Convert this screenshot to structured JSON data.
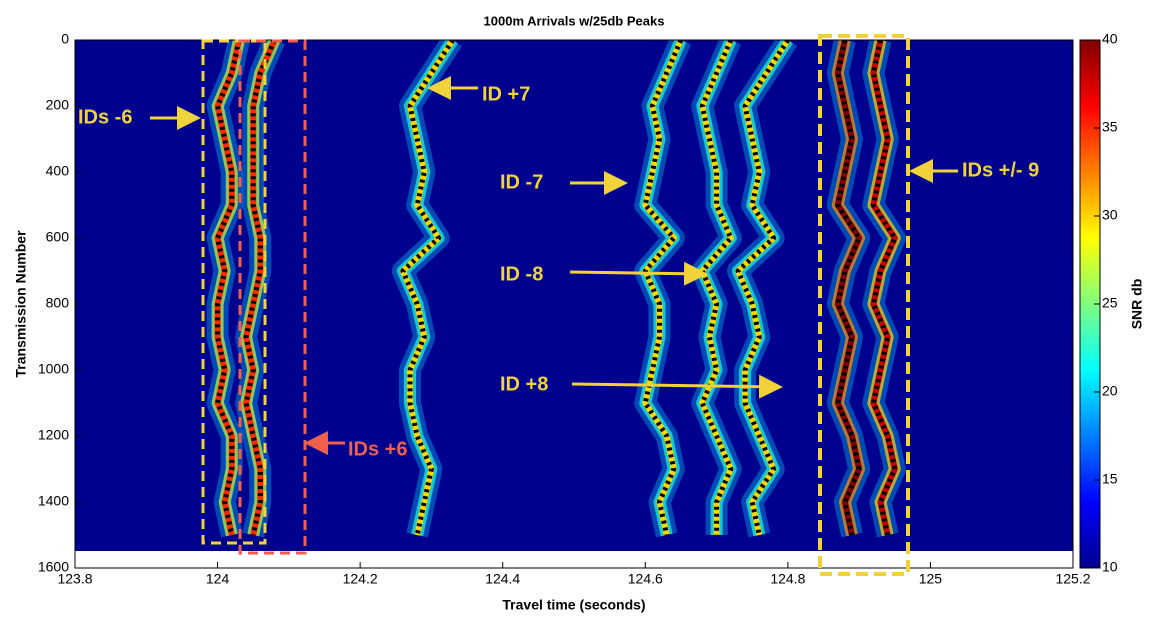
{
  "chart_data": {
    "type": "heatmap",
    "title": "1000m Arrivals w/25db Peaks",
    "x_label": "Travel time (seconds)",
    "y_label": "Transmission Number",
    "xlim": [
      123.8,
      125.2
    ],
    "xticks": [
      123.8,
      124,
      124.2,
      124.4,
      124.6,
      124.8,
      125,
      125.2
    ],
    "ylim": [
      0,
      1600
    ],
    "yticks": [
      0,
      200,
      400,
      600,
      800,
      1000,
      1200,
      1400,
      1600
    ],
    "y_reversed": true,
    "colormap": "jet",
    "colorbar_label": "SNR db",
    "clim": [
      10,
      40
    ],
    "cticks": [
      10,
      15,
      20,
      25,
      30,
      35,
      40
    ],
    "background_value": 10,
    "rows": [
      0,
      100,
      200,
      300,
      400,
      500,
      600,
      700,
      800,
      900,
      1000,
      1100,
      1200,
      1300,
      1400,
      1500
    ],
    "tracks": [
      {
        "x": [
          124.03,
          124.02,
          124.0,
          124.01,
          124.02,
          124.02,
          124.0,
          124.01,
          124.0,
          124.0,
          124.01,
          124.0,
          124.02,
          124.02,
          124.01,
          124.02
        ],
        "values": 35
      },
      {
        "x": [
          124.08,
          124.06,
          124.05,
          124.05,
          124.05,
          124.05,
          124.06,
          124.06,
          124.05,
          124.04,
          124.05,
          124.04,
          124.05,
          124.06,
          124.06,
          124.05
        ],
        "values": 35
      },
      {
        "x": [
          124.33,
          124.3,
          124.27,
          124.28,
          124.29,
          124.28,
          124.31,
          124.26,
          124.28,
          124.29,
          124.27,
          124.27,
          124.28,
          124.3,
          124.29,
          124.28
        ],
        "values": 30
      },
      {
        "x": [
          124.65,
          124.63,
          124.61,
          124.62,
          124.61,
          124.6,
          124.64,
          124.6,
          124.62,
          124.62,
          124.61,
          124.6,
          124.63,
          124.64,
          124.62,
          124.63
        ],
        "values": 30
      },
      {
        "x": [
          124.72,
          124.7,
          124.68,
          124.69,
          124.7,
          124.7,
          124.72,
          124.68,
          124.7,
          124.69,
          124.7,
          124.68,
          124.7,
          124.72,
          124.7,
          124.7
        ],
        "values": 30
      },
      {
        "x": [
          124.8,
          124.77,
          124.74,
          124.75,
          124.76,
          124.75,
          124.78,
          124.73,
          124.75,
          124.76,
          124.74,
          124.74,
          124.76,
          124.78,
          124.75,
          124.76
        ],
        "values": 30
      },
      {
        "x": [
          124.88,
          124.87,
          124.88,
          124.89,
          124.88,
          124.87,
          124.9,
          124.88,
          124.87,
          124.89,
          124.88,
          124.87,
          124.89,
          124.9,
          124.88,
          124.89
        ],
        "values": 40
      },
      {
        "x": [
          124.93,
          124.92,
          124.93,
          124.94,
          124.93,
          124.92,
          124.95,
          124.93,
          124.92,
          124.94,
          124.93,
          124.92,
          124.94,
          124.95,
          124.93,
          124.94
        ],
        "values": 38
      }
    ],
    "annotations": [
      "IDs -6",
      "ID +7",
      "ID -7",
      "ID -8",
      "ID +8",
      "IDs +/- 9",
      "IDs +6"
    ]
  }
}
